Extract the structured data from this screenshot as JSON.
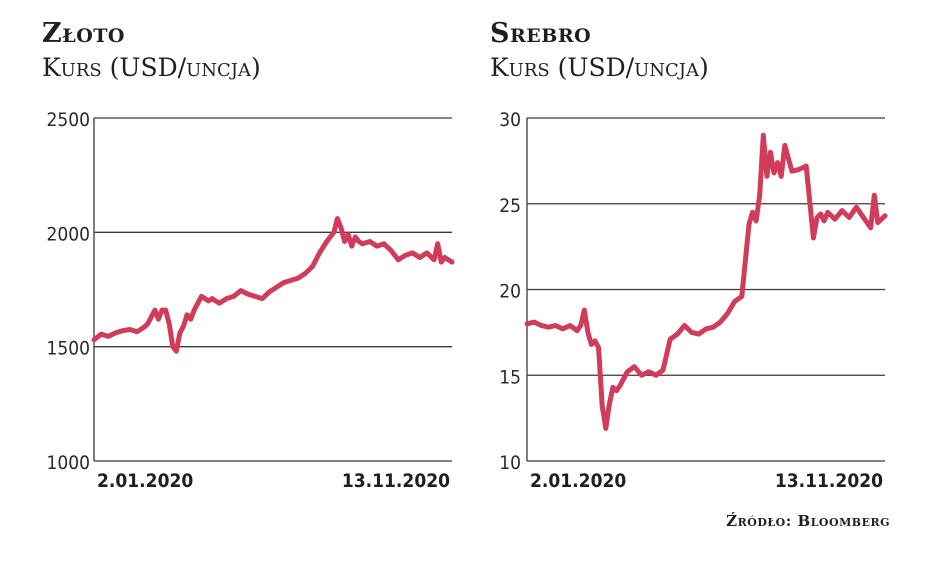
{
  "source": "Źródło: Bloomberg",
  "chart_data": [
    {
      "type": "line",
      "title": "Złoto",
      "subtitle": "Kurs (USD/uncja)",
      "ylim": [
        1000,
        2500
      ],
      "yticks": [
        1000,
        1500,
        2000,
        2500
      ],
      "xlim": [
        0,
        1
      ],
      "xtick_labels": [
        "2.01.2020",
        "13.11.2020"
      ],
      "grid": true,
      "series_color": "#d13c5a",
      "x": [
        0.0,
        0.02,
        0.04,
        0.06,
        0.08,
        0.1,
        0.12,
        0.14,
        0.15,
        0.17,
        0.18,
        0.19,
        0.2,
        0.21,
        0.22,
        0.23,
        0.24,
        0.25,
        0.26,
        0.27,
        0.28,
        0.3,
        0.32,
        0.33,
        0.35,
        0.37,
        0.39,
        0.41,
        0.43,
        0.45,
        0.47,
        0.49,
        0.51,
        0.53,
        0.55,
        0.57,
        0.59,
        0.61,
        0.63,
        0.65,
        0.67,
        0.68,
        0.69,
        0.7,
        0.71,
        0.72,
        0.73,
        0.74,
        0.75,
        0.77,
        0.79,
        0.81,
        0.83,
        0.85,
        0.87,
        0.89,
        0.91,
        0.93,
        0.95,
        0.96,
        0.97,
        0.98,
        1.0
      ],
      "y": [
        1530,
        1555,
        1545,
        1560,
        1570,
        1575,
        1565,
        1585,
        1600,
        1660,
        1620,
        1660,
        1660,
        1600,
        1500,
        1480,
        1560,
        1590,
        1640,
        1620,
        1660,
        1720,
        1700,
        1710,
        1690,
        1710,
        1720,
        1745,
        1730,
        1720,
        1710,
        1740,
        1760,
        1780,
        1790,
        1800,
        1820,
        1850,
        1910,
        1960,
        2000,
        2060,
        2020,
        1960,
        1990,
        1940,
        1980,
        1960,
        1950,
        1960,
        1940,
        1950,
        1920,
        1880,
        1900,
        1910,
        1890,
        1910,
        1880,
        1950,
        1870,
        1890,
        1870
      ]
    },
    {
      "type": "line",
      "title": "Srebro",
      "subtitle": "Kurs (USD/uncja)",
      "ylim": [
        10,
        30
      ],
      "yticks": [
        10,
        15,
        20,
        25,
        30
      ],
      "xlim": [
        0,
        1
      ],
      "xtick_labels": [
        "2.01.2020",
        "13.11.2020"
      ],
      "grid": true,
      "series_color": "#d13c5a",
      "x": [
        0.0,
        0.02,
        0.04,
        0.06,
        0.08,
        0.1,
        0.12,
        0.14,
        0.15,
        0.16,
        0.17,
        0.18,
        0.19,
        0.2,
        0.21,
        0.22,
        0.23,
        0.24,
        0.25,
        0.26,
        0.28,
        0.3,
        0.32,
        0.34,
        0.36,
        0.38,
        0.4,
        0.42,
        0.44,
        0.46,
        0.48,
        0.5,
        0.52,
        0.54,
        0.56,
        0.58,
        0.6,
        0.62,
        0.63,
        0.64,
        0.65,
        0.66,
        0.67,
        0.68,
        0.69,
        0.7,
        0.71,
        0.72,
        0.74,
        0.76,
        0.78,
        0.8,
        0.81,
        0.82,
        0.83,
        0.84,
        0.86,
        0.88,
        0.9,
        0.92,
        0.94,
        0.96,
        0.97,
        0.98,
        1.0
      ],
      "y": [
        18.0,
        18.1,
        17.9,
        17.8,
        17.9,
        17.7,
        17.9,
        17.6,
        17.9,
        18.8,
        17.5,
        16.8,
        17.0,
        16.6,
        13.2,
        11.9,
        13.3,
        14.3,
        14.1,
        14.4,
        15.2,
        15.5,
        15.0,
        15.2,
        15.0,
        15.3,
        17.1,
        17.4,
        17.9,
        17.5,
        17.4,
        17.7,
        17.8,
        18.1,
        18.6,
        19.3,
        19.6,
        23.8,
        24.5,
        24.0,
        25.5,
        29.0,
        26.6,
        28.0,
        26.8,
        27.4,
        26.6,
        28.4,
        26.9,
        27.0,
        27.2,
        23.0,
        24.2,
        24.4,
        24.0,
        24.5,
        24.1,
        24.6,
        24.2,
        24.8,
        24.2,
        23.6,
        25.5,
        23.9,
        24.3
      ]
    }
  ]
}
